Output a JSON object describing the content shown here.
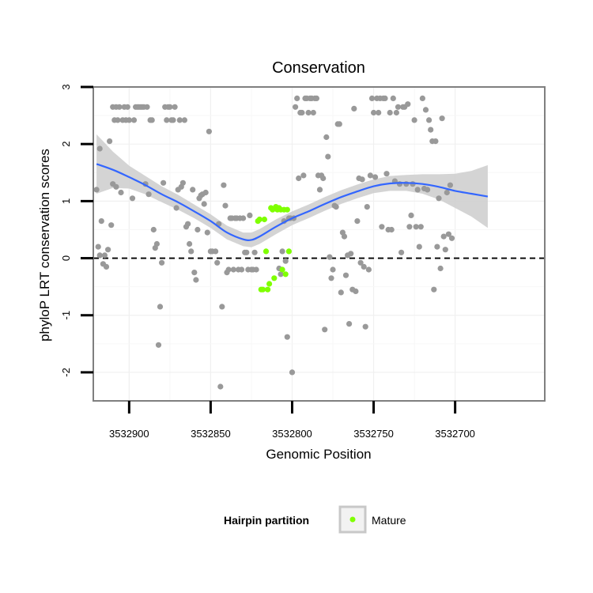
{
  "chart_data": {
    "type": "scatter",
    "title": "Conservation",
    "xlabel": "Genomic Position",
    "ylabel": "phyloP LRT conservation scores",
    "x_reversed": true,
    "xlim": [
      3532922,
      3532645
    ],
    "ylim": [
      -2.5,
      3.0
    ],
    "x_ticks": [
      "3532900",
      "3532850",
      "3532800",
      "3532750",
      "3532700"
    ],
    "x_tick_values": [
      3532900,
      3532850,
      3532800,
      3532750,
      3532700
    ],
    "y_ticks": [
      "-2",
      "-1",
      "0",
      "1",
      "2",
      "3"
    ],
    "y_tick_values": [
      -2,
      -1,
      0,
      1,
      2,
      3
    ],
    "grid": true,
    "reference_line": {
      "y": 0,
      "style": "dashed",
      "color": "#000000"
    },
    "legend": {
      "title": "Hairpin partition",
      "entries": [
        {
          "label": "Mature",
          "color": "#7FFF00"
        }
      ],
      "position": "bottom"
    },
    "colors": {
      "other_points": "#999999",
      "mature_points": "#7FFF00",
      "smooth_line": "#3366FF",
      "confidence_band": "#CCCCCC"
    },
    "series": [
      {
        "partition": "other",
        "points": [
          [
            3532920,
            1.2
          ],
          [
            3532919,
            0.2
          ],
          [
            3532918,
            0.05
          ],
          [
            3532918,
            1.92
          ],
          [
            3532917,
            0.65
          ],
          [
            3532916,
            -0.1
          ],
          [
            3532915,
            0.05
          ],
          [
            3532914,
            -0.15
          ],
          [
            3532913,
            0.15
          ],
          [
            3532912,
            2.05
          ],
          [
            3532911,
            0.58
          ],
          [
            3532910,
            2.65
          ],
          [
            3532910,
            1.3
          ],
          [
            3532909,
            2.42
          ],
          [
            3532908,
            2.65
          ],
          [
            3532908,
            1.25
          ],
          [
            3532907,
            2.42
          ],
          [
            3532906,
            2.65
          ],
          [
            3532905,
            1.15
          ],
          [
            3532904,
            2.42
          ],
          [
            3532903,
            2.65
          ],
          [
            3532902,
            2.42
          ],
          [
            3532901,
            2.65
          ],
          [
            3532900,
            2.42
          ],
          [
            3532898,
            1.05
          ],
          [
            3532897,
            2.42
          ],
          [
            3532896,
            2.65
          ],
          [
            3532895,
            2.65
          ],
          [
            3532894,
            2.65
          ],
          [
            3532893,
            2.65
          ],
          [
            3532892,
            2.65
          ],
          [
            3532891,
            2.65
          ],
          [
            3532890,
            1.3
          ],
          [
            3532889,
            2.65
          ],
          [
            3532888,
            1.12
          ],
          [
            3532887,
            2.42
          ],
          [
            3532886,
            2.42
          ],
          [
            3532885,
            0.5
          ],
          [
            3532884,
            0.18
          ],
          [
            3532883,
            0.25
          ],
          [
            3532882,
            -1.52
          ],
          [
            3532881,
            -0.85
          ],
          [
            3532880,
            -0.08
          ],
          [
            3532879,
            1.32
          ],
          [
            3532878,
            2.65
          ],
          [
            3532877,
            2.42
          ],
          [
            3532876,
            2.65
          ],
          [
            3532875,
            2.65
          ],
          [
            3532874,
            2.42
          ],
          [
            3532873,
            2.42
          ],
          [
            3532872,
            2.65
          ],
          [
            3532871,
            0.88
          ],
          [
            3532870,
            1.2
          ],
          [
            3532869,
            2.42
          ],
          [
            3532868,
            1.25
          ],
          [
            3532867,
            1.32
          ],
          [
            3532866,
            2.42
          ],
          [
            3532865,
            0.55
          ],
          [
            3532864,
            0.6
          ],
          [
            3532863,
            0.25
          ],
          [
            3532862,
            0.12
          ],
          [
            3532861,
            1.2
          ],
          [
            3532860,
            -0.25
          ],
          [
            3532859,
            -0.38
          ],
          [
            3532858,
            0.5
          ],
          [
            3532857,
            1.05
          ],
          [
            3532856,
            1.1
          ],
          [
            3532855,
            1.12
          ],
          [
            3532854,
            0.95
          ],
          [
            3532853,
            1.15
          ],
          [
            3532852,
            0.45
          ],
          [
            3532851,
            2.22
          ],
          [
            3532850,
            0.12
          ],
          [
            3532849,
            0.12
          ],
          [
            3532847,
            0.12
          ],
          [
            3532846,
            -0.08
          ],
          [
            3532845,
            0.6
          ],
          [
            3532844,
            -2.25
          ],
          [
            3532843,
            -0.85
          ],
          [
            3532842,
            1.28
          ],
          [
            3532841,
            0.92
          ],
          [
            3532840,
            -0.25
          ],
          [
            3532839,
            -0.2
          ],
          [
            3532838,
            0.7
          ],
          [
            3532837,
            0.7
          ],
          [
            3532836,
            -0.2
          ],
          [
            3532835,
            0.7
          ],
          [
            3532834,
            0.7
          ],
          [
            3532833,
            -0.2
          ],
          [
            3532832,
            0.7
          ],
          [
            3532831,
            -0.2
          ],
          [
            3532830,
            0.7
          ],
          [
            3532829,
            0.1
          ],
          [
            3532828,
            0.1
          ],
          [
            3532827,
            -0.2
          ],
          [
            3532826,
            0.75
          ],
          [
            3532825,
            -0.2
          ],
          [
            3532824,
            -0.2
          ],
          [
            3532823,
            0.1
          ],
          [
            3532822,
            -0.2
          ],
          [
            3532808,
            -0.18
          ],
          [
            3532807,
            -0.28
          ],
          [
            3532806,
            0.12
          ],
          [
            3532805,
            0.65
          ],
          [
            3532804,
            -0.05
          ],
          [
            3532803,
            -1.38
          ],
          [
            3532802,
            0.7
          ],
          [
            3532801,
            0.7
          ],
          [
            3532800,
            -2.0
          ],
          [
            3532799,
            0.7
          ],
          [
            3532798,
            2.65
          ],
          [
            3532797,
            2.8
          ],
          [
            3532796,
            1.4
          ],
          [
            3532795,
            2.55
          ],
          [
            3532794,
            2.55
          ],
          [
            3532793,
            1.45
          ],
          [
            3532792,
            2.8
          ],
          [
            3532791,
            2.8
          ],
          [
            3532790,
            2.55
          ],
          [
            3532789,
            2.8
          ],
          [
            3532788,
            2.8
          ],
          [
            3532787,
            2.55
          ],
          [
            3532786,
            2.8
          ],
          [
            3532785,
            2.8
          ],
          [
            3532784,
            1.45
          ],
          [
            3532783,
            1.2
          ],
          [
            3532782,
            1.45
          ],
          [
            3532781,
            1.4
          ],
          [
            3532780,
            -1.25
          ],
          [
            3532779,
            2.12
          ],
          [
            3532778,
            1.78
          ],
          [
            3532777,
            0.02
          ],
          [
            3532776,
            -0.35
          ],
          [
            3532775,
            -0.2
          ],
          [
            3532774,
            0.92
          ],
          [
            3532773,
            0.9
          ],
          [
            3532772,
            2.35
          ],
          [
            3532771,
            2.35
          ],
          [
            3532770,
            -0.6
          ],
          [
            3532769,
            0.45
          ],
          [
            3532768,
            0.38
          ],
          [
            3532767,
            -0.3
          ],
          [
            3532766,
            0.05
          ],
          [
            3532765,
            -1.15
          ],
          [
            3532764,
            0.08
          ],
          [
            3532763,
            -0.55
          ],
          [
            3532762,
            2.62
          ],
          [
            3532761,
            -0.58
          ],
          [
            3532760,
            0.65
          ],
          [
            3532759,
            1.4
          ],
          [
            3532758,
            -0.08
          ],
          [
            3532757,
            1.38
          ],
          [
            3532756,
            -0.15
          ],
          [
            3532755,
            -1.2
          ],
          [
            3532754,
            0.9
          ],
          [
            3532753,
            -0.2
          ],
          [
            3532752,
            1.45
          ],
          [
            3532751,
            2.8
          ],
          [
            3532750,
            2.55
          ],
          [
            3532749,
            1.42
          ],
          [
            3532748,
            2.8
          ],
          [
            3532747,
            2.55
          ],
          [
            3532746,
            2.8
          ],
          [
            3532745,
            0.55
          ],
          [
            3532744,
            2.8
          ],
          [
            3532743,
            2.8
          ],
          [
            3532742,
            1.48
          ],
          [
            3532741,
            0.5
          ],
          [
            3532740,
            2.55
          ],
          [
            3532739,
            0.5
          ],
          [
            3532738,
            2.8
          ],
          [
            3532737,
            1.35
          ],
          [
            3532736,
            2.55
          ],
          [
            3532735,
            2.65
          ],
          [
            3532734,
            1.3
          ],
          [
            3532733,
            0.1
          ],
          [
            3532732,
            2.65
          ],
          [
            3532731,
            2.65
          ],
          [
            3532730,
            1.3
          ],
          [
            3532729,
            2.7
          ],
          [
            3532728,
            0.55
          ],
          [
            3532727,
            0.75
          ],
          [
            3532726,
            1.3
          ],
          [
            3532725,
            2.42
          ],
          [
            3532724,
            0.55
          ],
          [
            3532723,
            1.2
          ],
          [
            3532722,
            0.2
          ],
          [
            3532721,
            0.55
          ],
          [
            3532720,
            2.8
          ],
          [
            3532719,
            1.22
          ],
          [
            3532718,
            2.6
          ],
          [
            3532717,
            1.2
          ],
          [
            3532716,
            2.42
          ],
          [
            3532715,
            2.25
          ],
          [
            3532714,
            2.05
          ],
          [
            3532713,
            -0.55
          ],
          [
            3532712,
            2.05
          ],
          [
            3532711,
            0.2
          ],
          [
            3532710,
            1.05
          ],
          [
            3532709,
            -0.18
          ],
          [
            3532708,
            2.45
          ],
          [
            3532707,
            0.38
          ],
          [
            3532706,
            0.15
          ],
          [
            3532705,
            1.15
          ],
          [
            3532704,
            0.42
          ],
          [
            3532703,
            1.28
          ],
          [
            3532702,
            0.35
          ]
        ]
      },
      {
        "partition": "Mature",
        "points": [
          [
            3532821,
            0.65
          ],
          [
            3532820,
            0.68
          ],
          [
            3532819,
            -0.55
          ],
          [
            3532818,
            -0.55
          ],
          [
            3532817,
            0.68
          ],
          [
            3532816,
            0.12
          ],
          [
            3532815,
            -0.55
          ],
          [
            3532814,
            -0.45
          ],
          [
            3532813,
            0.88
          ],
          [
            3532812,
            0.85
          ],
          [
            3532811,
            -0.35
          ],
          [
            3532810,
            0.9
          ],
          [
            3532809,
            0.85
          ],
          [
            3532808,
            0.88
          ],
          [
            3532807,
            0.85
          ],
          [
            3532806,
            -0.2
          ],
          [
            3532805,
            0.85
          ],
          [
            3532804,
            -0.28
          ],
          [
            3532803,
            0.85
          ],
          [
            3532802,
            0.12
          ]
        ]
      }
    ],
    "smooth": {
      "points": [
        [
          3532920,
          1.65
        ],
        [
          3532910,
          1.55
        ],
        [
          3532900,
          1.42
        ],
        [
          3532890,
          1.28
        ],
        [
          3532880,
          1.12
        ],
        [
          3532870,
          0.98
        ],
        [
          3532860,
          0.82
        ],
        [
          3532850,
          0.65
        ],
        [
          3532840,
          0.45
        ],
        [
          3532830,
          0.33
        ],
        [
          3532825,
          0.32
        ],
        [
          3532820,
          0.38
        ],
        [
          3532810,
          0.55
        ],
        [
          3532800,
          0.7
        ],
        [
          3532790,
          0.82
        ],
        [
          3532780,
          0.95
        ],
        [
          3532770,
          1.07
        ],
        [
          3532760,
          1.17
        ],
        [
          3532750,
          1.26
        ],
        [
          3532740,
          1.31
        ],
        [
          3532730,
          1.32
        ],
        [
          3532720,
          1.3
        ],
        [
          3532710,
          1.25
        ],
        [
          3532700,
          1.18
        ],
        [
          3532690,
          1.13
        ],
        [
          3532680,
          1.08
        ]
      ],
      "band_halfwidth": [
        0.52,
        0.32,
        0.2,
        0.16,
        0.14,
        0.13,
        0.12,
        0.12,
        0.12,
        0.12,
        0.13,
        0.13,
        0.13,
        0.12,
        0.12,
        0.12,
        0.12,
        0.12,
        0.12,
        0.13,
        0.14,
        0.17,
        0.22,
        0.3,
        0.4,
        0.55
      ]
    }
  }
}
